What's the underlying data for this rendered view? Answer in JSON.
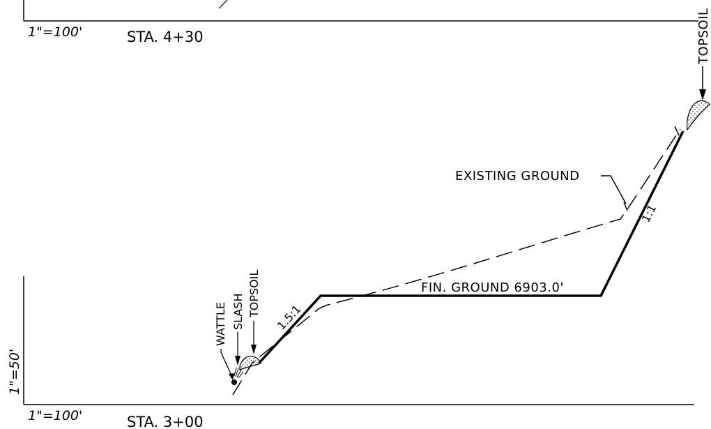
{
  "upper_section": {
    "horizontal_scale": "1\"=100'",
    "station": "STA. 4+30"
  },
  "lower_section": {
    "horizontal_scale": "1\"=100'",
    "vertical_scale": "1\"=50'",
    "station": "STA. 3+00"
  },
  "labels": {
    "topsoil_right": "TOPSOIL",
    "existing_ground": "EXISTING GROUND",
    "fin_ground": "FIN. GROUND 6903.0'",
    "slope_right": "1:1",
    "slope_left": "1.5:1",
    "wattle": "WATTLE",
    "slash": "SLASH",
    "topsoil_left": "TOPSOIL"
  }
}
